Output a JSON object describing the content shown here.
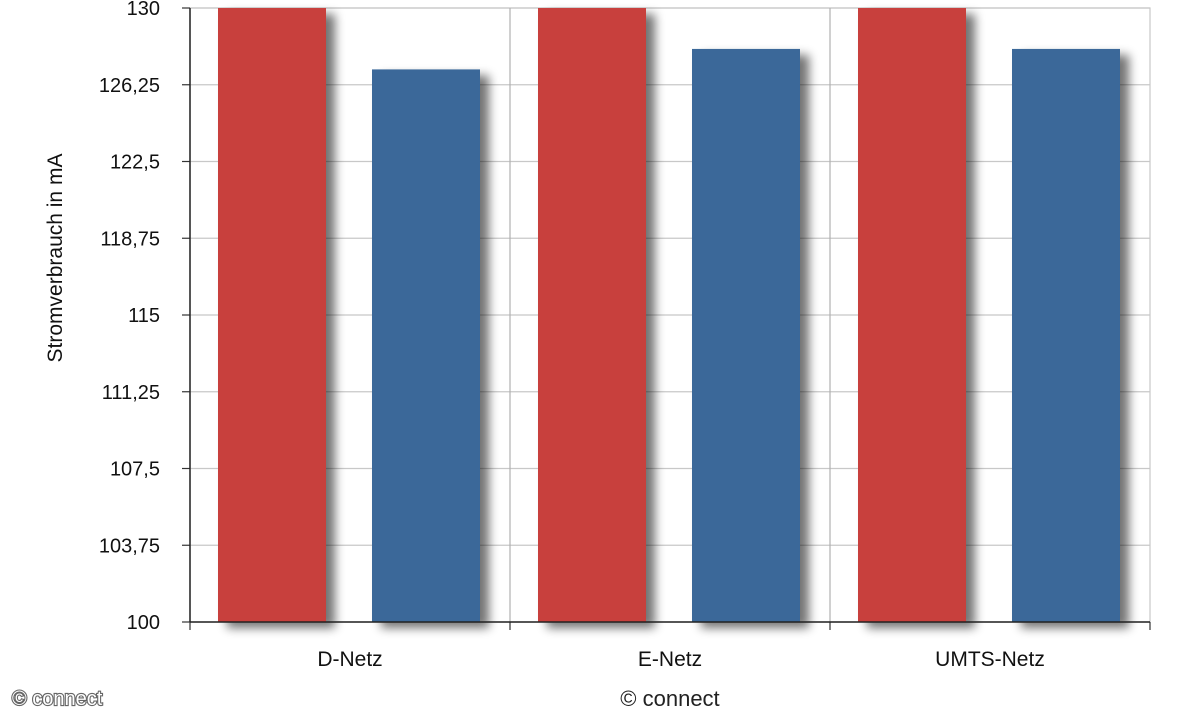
{
  "chart_data": {
    "type": "bar",
    "ylabel": "Stromverbrauch in mA",
    "xlabel": "",
    "ylim": [
      100,
      130
    ],
    "yticks": [
      "100",
      "103,75",
      "107,5",
      "111,25",
      "115",
      "118,75",
      "122,5",
      "126,25",
      "130"
    ],
    "categories": [
      "D-Netz",
      "E-Netz",
      "UMTS-Netz"
    ],
    "series": [
      {
        "color": "#c8403c",
        "values": [
          130,
          130,
          130
        ]
      },
      {
        "color": "#3a6899",
        "values": [
          127,
          128,
          128
        ]
      }
    ],
    "grid": true
  },
  "credit_bottom": "© connect",
  "credit_corner": "© connect"
}
